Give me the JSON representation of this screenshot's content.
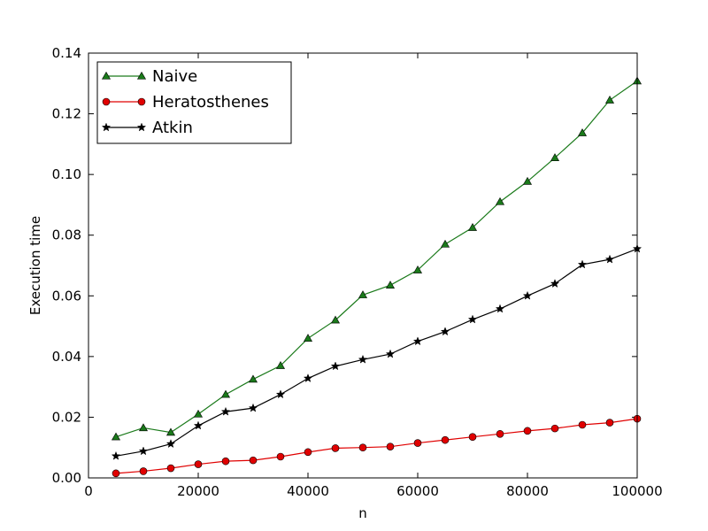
{
  "chart_data": {
    "type": "line",
    "xlabel": "n",
    "ylabel": "Execution time",
    "xlim": [
      0,
      100000
    ],
    "ylim": [
      0,
      0.14
    ],
    "xticks": [
      "0",
      "20000",
      "40000",
      "60000",
      "80000",
      "100000"
    ],
    "xtick_values": [
      0,
      20000,
      40000,
      60000,
      80000,
      100000
    ],
    "yticks": [
      "0.00",
      "0.02",
      "0.04",
      "0.06",
      "0.08",
      "0.10",
      "0.12",
      "0.14"
    ],
    "ytick_values": [
      0,
      0.02,
      0.04,
      0.06,
      0.08,
      0.1,
      0.12,
      0.14
    ],
    "grid": false,
    "legend_position": "top-left",
    "x": [
      5000,
      10000,
      15000,
      20000,
      25000,
      30000,
      35000,
      40000,
      45000,
      50000,
      55000,
      60000,
      65000,
      70000,
      75000,
      80000,
      85000,
      90000,
      95000,
      100000
    ],
    "series": [
      {
        "name": "Naive",
        "color": "#1a7a1a",
        "marker": "triangle",
        "values": [
          0.0135,
          0.0165,
          0.015,
          0.021,
          0.0275,
          0.0325,
          0.037,
          0.046,
          0.052,
          0.0603,
          0.0635,
          0.0685,
          0.077,
          0.0825,
          0.091,
          0.0977,
          0.1055,
          0.1137,
          0.1245,
          0.1308
        ]
      },
      {
        "name": "Heratosthenes",
        "color": "#e00000",
        "marker": "circle",
        "values": [
          0.0015,
          0.0022,
          0.0032,
          0.0045,
          0.0055,
          0.0058,
          0.007,
          0.0085,
          0.0098,
          0.01,
          0.0103,
          0.0115,
          0.0125,
          0.0135,
          0.0145,
          0.0155,
          0.0163,
          0.0175,
          0.0182,
          0.0195
        ]
      },
      {
        "name": "Atkin",
        "color": "#000000",
        "marker": "star",
        "values": [
          0.0072,
          0.0088,
          0.0112,
          0.0172,
          0.0218,
          0.023,
          0.0275,
          0.0328,
          0.0368,
          0.039,
          0.0408,
          0.045,
          0.0482,
          0.0522,
          0.0557,
          0.06,
          0.064,
          0.0703,
          0.072,
          0.0755
        ]
      }
    ]
  }
}
